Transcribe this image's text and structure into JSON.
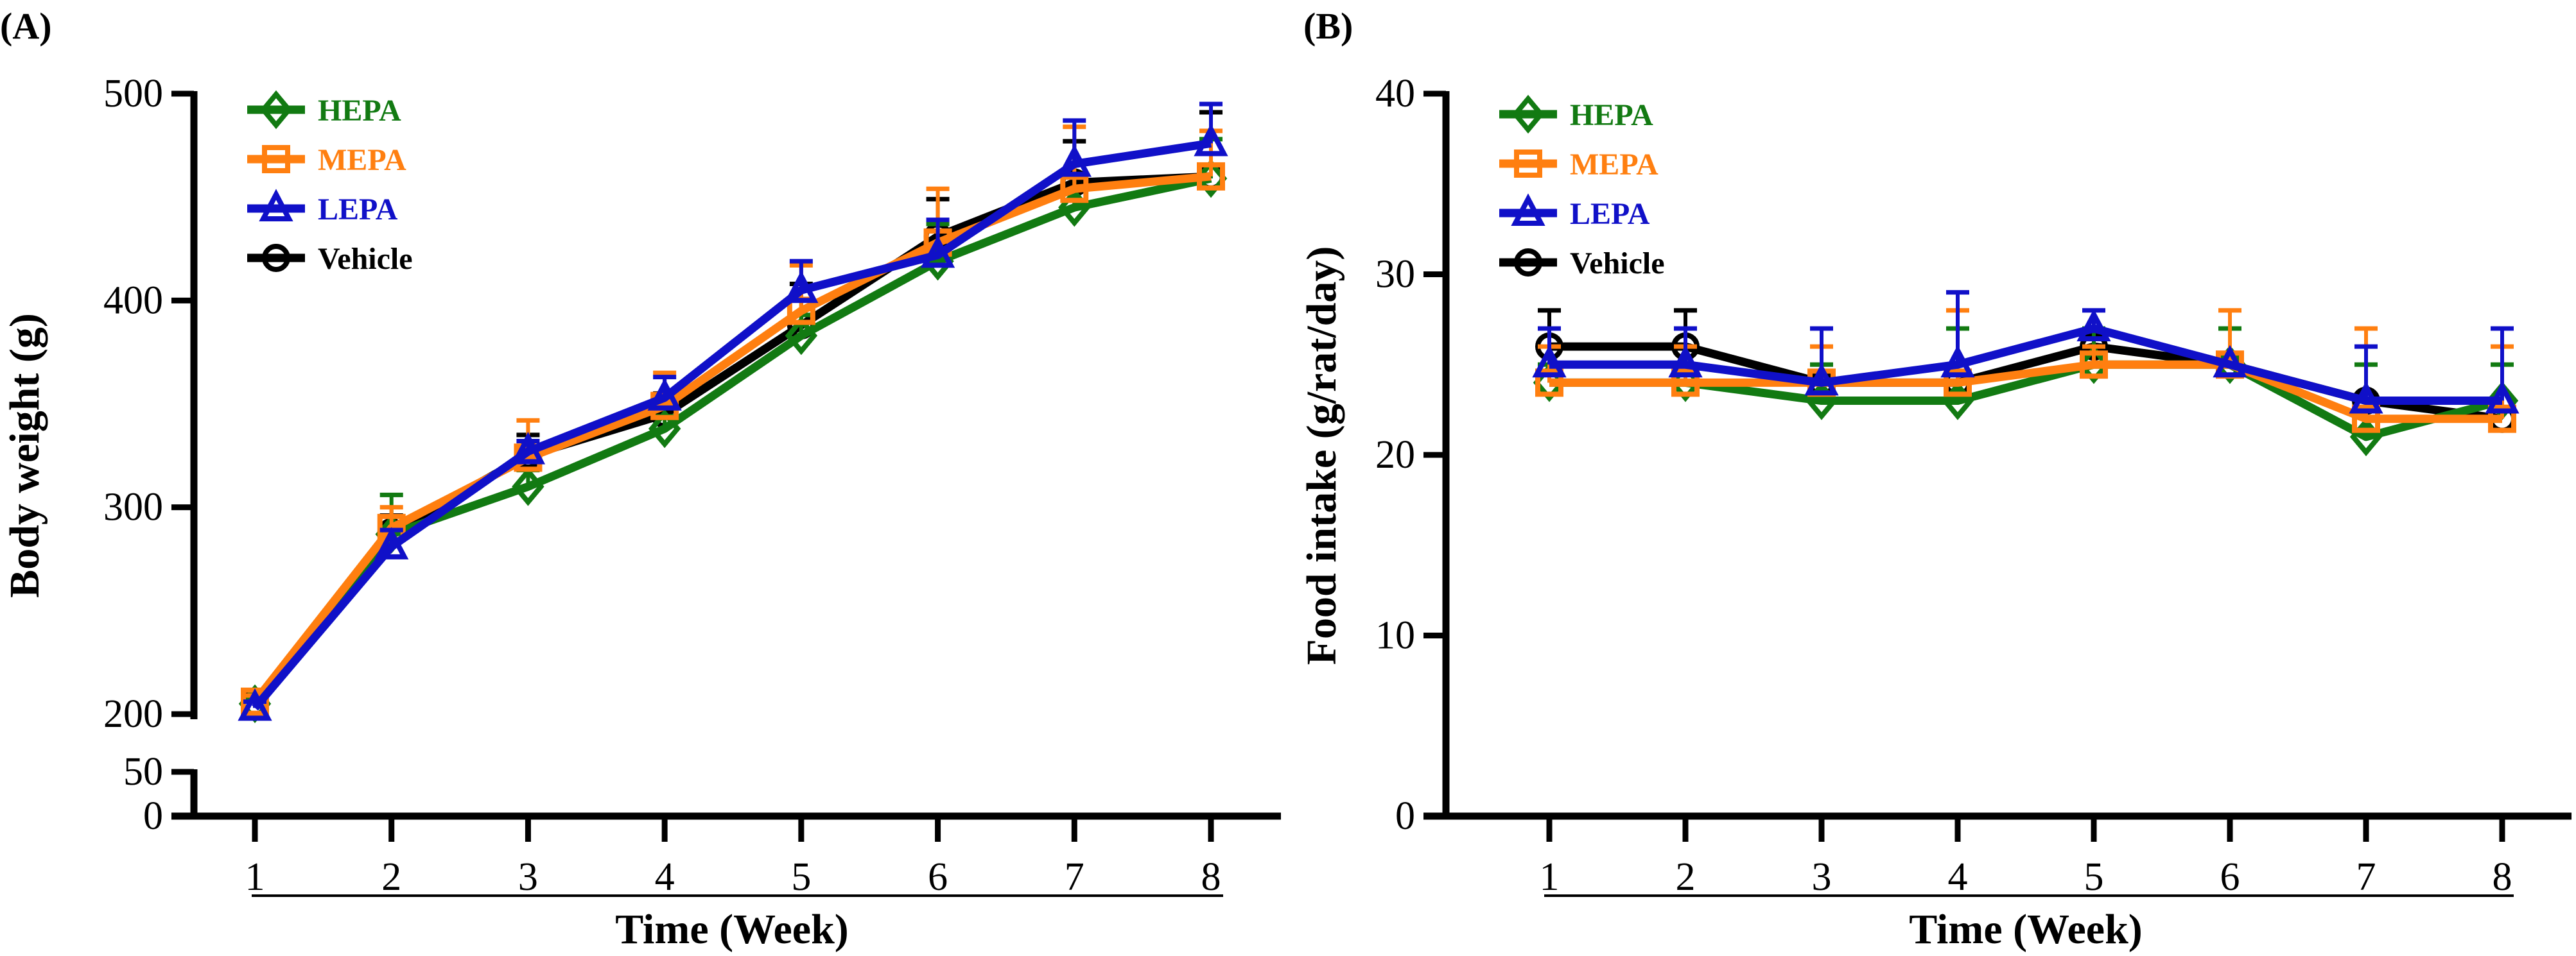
{
  "chart_data": [
    {
      "type": "line",
      "panel_label": "(A)",
      "title": "",
      "xlabel": "Time (Week)",
      "ylabel": "Body weight (g)",
      "x": [
        1,
        2,
        3,
        4,
        5,
        6,
        7,
        8
      ],
      "x_ticks": [
        "1",
        "2",
        "3",
        "4",
        "5",
        "6",
        "7",
        "8"
      ],
      "y_ticks": [
        "0",
        "50",
        "200",
        "300",
        "400",
        "500"
      ],
      "y_tick_values": [
        0,
        50,
        200,
        300,
        400,
        500
      ],
      "ylim": [
        0,
        500
      ],
      "y_axis_break": [
        50,
        200
      ],
      "grid": false,
      "legend_position": "top-left",
      "series": [
        {
          "name": "HEPA",
          "color": "#127a12",
          "marker": "diamond",
          "values": [
            205,
            287,
            310,
            338,
            383,
            419,
            445,
            459
          ],
          "errors": [
            3,
            19,
            8,
            6,
            10,
            18,
            15,
            19
          ]
        },
        {
          "name": "MEPA",
          "color": "#ff7f10",
          "marker": "square",
          "values": [
            206,
            290,
            324,
            349,
            395,
            428,
            454,
            460
          ],
          "errors": [
            3,
            10,
            18,
            16,
            22,
            26,
            30,
            22
          ]
        },
        {
          "name": "LEPA",
          "color": "#1010c8",
          "marker": "triangle",
          "values": [
            203,
            281,
            327,
            353,
            405,
            422,
            466,
            476
          ],
          "errors": [
            3,
            8,
            5,
            10,
            14,
            17,
            21,
            19
          ]
        },
        {
          "name": "Vehicle",
          "color": "#000000",
          "marker": "circle",
          "values": [
            205,
            288,
            325,
            345,
            388,
            431,
            457,
            460
          ],
          "errors": [
            3,
            8,
            10,
            10,
            20,
            18,
            20,
            31
          ]
        }
      ]
    },
    {
      "type": "line",
      "panel_label": "(B)",
      "title": "",
      "xlabel": "Time (Week)",
      "ylabel": "Food intake (g/rat/day)",
      "x": [
        1,
        2,
        3,
        4,
        5,
        6,
        7,
        8
      ],
      "x_ticks": [
        "1",
        "2",
        "3",
        "4",
        "5",
        "6",
        "7",
        "8"
      ],
      "y_ticks": [
        "0",
        "10",
        "20",
        "30",
        "40"
      ],
      "y_tick_values": [
        0,
        10,
        20,
        30,
        40
      ],
      "ylim": [
        0,
        40
      ],
      "grid": false,
      "legend_position": "top-left",
      "series": [
        {
          "name": "HEPA",
          "color": "#127a12",
          "marker": "diamond",
          "values": [
            24,
            24,
            23,
            23,
            25,
            25,
            21,
            23
          ],
          "errors": [
            1,
            1,
            2,
            4,
            2,
            2,
            4,
            2
          ]
        },
        {
          "name": "MEPA",
          "color": "#ff7f10",
          "marker": "square",
          "values": [
            24,
            24,
            24,
            24,
            25,
            25,
            22,
            22
          ],
          "errors": [
            2,
            2,
            2,
            4,
            1,
            3,
            5,
            4
          ]
        },
        {
          "name": "LEPA",
          "color": "#1010c8",
          "marker": "triangle",
          "values": [
            25,
            25,
            24,
            25,
            27,
            25,
            23,
            23
          ],
          "errors": [
            2,
            2,
            3,
            4,
            1,
            0,
            3,
            4
          ]
        },
        {
          "name": "Vehicle",
          "color": "#000000",
          "marker": "circle",
          "values": [
            26,
            26,
            24,
            24,
            26,
            25,
            23,
            22
          ],
          "errors": [
            2,
            2,
            0,
            0,
            1,
            0,
            0,
            0
          ]
        }
      ]
    }
  ]
}
